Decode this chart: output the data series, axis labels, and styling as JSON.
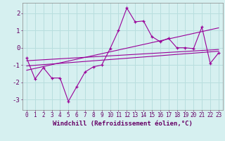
{
  "background_color": "#d6f0f0",
  "grid_color": "#b8dede",
  "line_color": "#990099",
  "xlim": [
    -0.5,
    23.5
  ],
  "ylim": [
    -3.6,
    2.6
  ],
  "yticks": [
    -3,
    -2,
    -1,
    0,
    1,
    2
  ],
  "xticks": [
    0,
    1,
    2,
    3,
    4,
    5,
    6,
    7,
    8,
    9,
    10,
    11,
    12,
    13,
    14,
    15,
    16,
    17,
    18,
    19,
    20,
    21,
    22,
    23
  ],
  "xlabel": "Windchill (Refroidissement éolien,°C)",
  "xlabel_fontsize": 6.5,
  "tick_fontsize": 5.5,
  "series1_x": [
    0,
    1,
    2,
    3,
    4,
    5,
    6,
    7,
    8,
    9,
    10,
    11,
    12,
    13,
    14,
    15,
    16,
    17,
    18,
    19,
    20,
    21,
    22,
    23
  ],
  "series1_y": [
    -0.6,
    -1.8,
    -1.15,
    -1.75,
    -1.75,
    -3.1,
    -2.25,
    -1.4,
    -1.1,
    -1.0,
    -0.05,
    1.0,
    2.3,
    1.5,
    1.55,
    0.65,
    0.35,
    0.55,
    0.0,
    0.0,
    -0.05,
    1.2,
    -0.9,
    -0.3
  ],
  "trend_lines": [
    {
      "x": [
        0,
        23
      ],
      "y": [
        -1.3,
        1.15
      ]
    },
    {
      "x": [
        0,
        23
      ],
      "y": [
        -1.05,
        -0.2
      ]
    },
    {
      "x": [
        0,
        23
      ],
      "y": [
        -0.75,
        -0.1
      ]
    }
  ]
}
